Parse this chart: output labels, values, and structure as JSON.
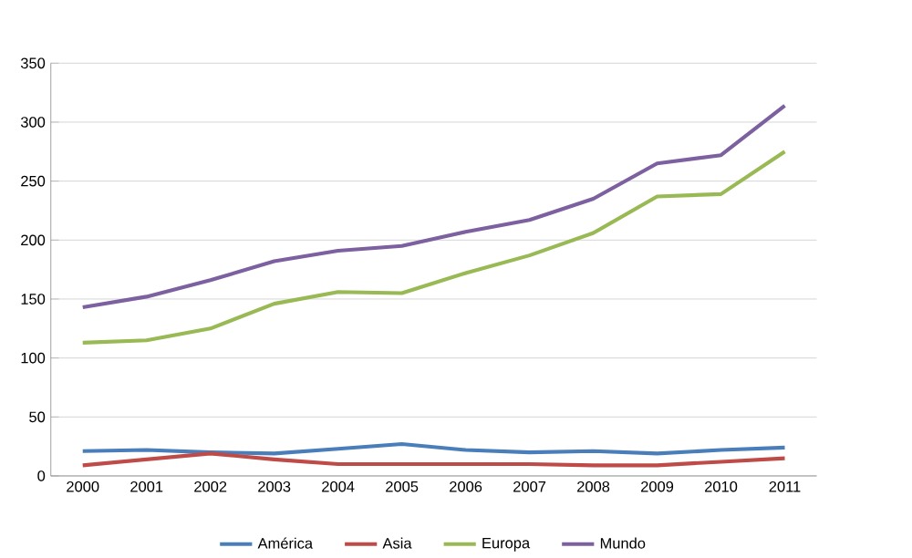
{
  "chart_data": {
    "type": "line",
    "categories": [
      "2000",
      "2001",
      "2002",
      "2003",
      "2004",
      "2005",
      "2006",
      "2007",
      "2008",
      "2009",
      "2010",
      "2011"
    ],
    "series": [
      {
        "name": "América",
        "color": "#4a7ebb",
        "values": [
          21,
          22,
          20,
          19,
          23,
          27,
          22,
          20,
          21,
          19,
          22,
          24
        ]
      },
      {
        "name": "Asia",
        "color": "#be4b48",
        "values": [
          9,
          14,
          19,
          14,
          10,
          10,
          10,
          10,
          9,
          9,
          12,
          15
        ]
      },
      {
        "name": "Europa",
        "color": "#98b954",
        "values": [
          113,
          115,
          125,
          146,
          156,
          155,
          172,
          187,
          206,
          237,
          239,
          275
        ]
      },
      {
        "name": "Mundo",
        "color": "#7d60a0",
        "values": [
          143,
          152,
          166,
          182,
          191,
          195,
          207,
          217,
          235,
          265,
          272,
          314
        ]
      }
    ],
    "ylim": [
      0,
      350
    ],
    "yticks": [
      0,
      50,
      100,
      150,
      200,
      250,
      300,
      350
    ],
    "grid": "y",
    "legend": "bottom",
    "marker": "none",
    "line_style": "solid"
  }
}
